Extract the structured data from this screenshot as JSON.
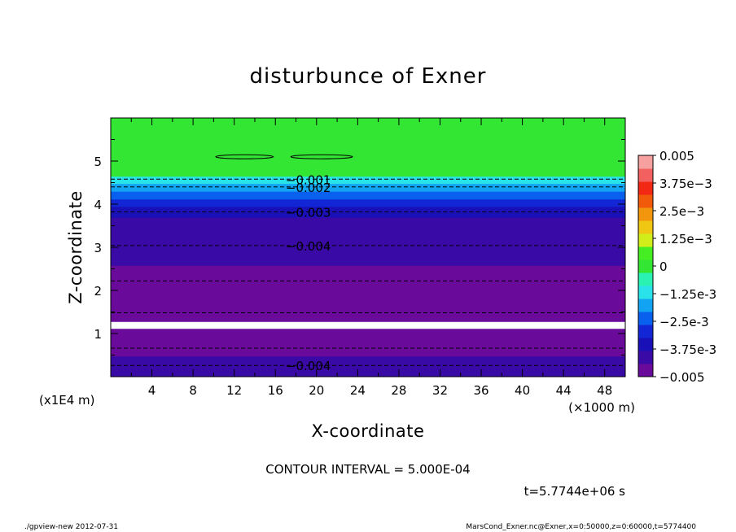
{
  "chart_data": {
    "type": "heatmap",
    "title": "disturbunce of Exner",
    "xlabel": "X-coordinate",
    "ylabel": "Z-coordinate",
    "x_unit": "(×1000 m)",
    "y_unit": "(x1E4 m)",
    "xlim": [
      0,
      50
    ],
    "ylim": [
      0,
      6
    ],
    "x_ticks": [
      4,
      8,
      12,
      16,
      20,
      24,
      28,
      32,
      36,
      40,
      44,
      48
    ],
    "y_ticks": [
      1,
      2,
      3,
      4,
      5
    ],
    "colorbar": {
      "min": -0.005,
      "max": 0.005,
      "tick_labels": [
        "0.005",
        "3.75e-3",
        "2.5e-3",
        "1.25e-3",
        "0",
        "-1.25e-3",
        "-2.5e-3",
        "-3.75e-3",
        "-0.005"
      ],
      "tick_values": [
        0.005,
        0.00375,
        0.0025,
        0.00125,
        0,
        -0.00125,
        -0.0025,
        -0.00375,
        -0.005
      ],
      "colors": [
        "#6a0a9a",
        "#3a0aa6",
        "#1a10b8",
        "#1226d6",
        "#0a60ee",
        "#12a4f2",
        "#2ae2ea",
        "#2af2b2",
        "#33e633",
        "#44ee22",
        "#d2ee1a",
        "#f0c814",
        "#f2960e",
        "#f05a0a",
        "#f22814",
        "#f26060",
        "#f7a0a0"
      ]
    },
    "bands": [
      {
        "z_bottom": 0.0,
        "z_top": 0.26,
        "value": -0.00412
      },
      {
        "z_bottom": 0.26,
        "z_top": 0.48,
        "value": -0.00437
      },
      {
        "z_bottom": 0.48,
        "z_top": 0.62,
        "value": -0.00462
      },
      {
        "z_bottom": 0.62,
        "z_top": 0.8,
        "value": -0.00487
      },
      {
        "z_bottom": 0.8,
        "z_top": 1.0,
        "value": -0.00512
      },
      {
        "z_bottom": 1.0,
        "z_top": 1.12,
        "value": -0.00537
      },
      {
        "z_bottom": 1.12,
        "z_top": 1.28,
        "value": null
      },
      {
        "z_bottom": 1.28,
        "z_top": 1.68,
        "value": -0.00512
      },
      {
        "z_bottom": 1.68,
        "z_top": 2.12,
        "value": -0.00487
      },
      {
        "z_bottom": 2.12,
        "z_top": 2.58,
        "value": -0.00462
      },
      {
        "z_bottom": 2.58,
        "z_top": 3.05,
        "value": -0.00437
      },
      {
        "z_bottom": 3.05,
        "z_top": 3.4,
        "value": -0.00412
      },
      {
        "z_bottom": 3.4,
        "z_top": 3.7,
        "value": -0.00387
      },
      {
        "z_bottom": 3.7,
        "z_top": 3.95,
        "value": -0.00362
      },
      {
        "z_bottom": 3.95,
        "z_top": 4.12,
        "value": -0.00312
      },
      {
        "z_bottom": 4.12,
        "z_top": 4.3,
        "value": -0.00262
      },
      {
        "z_bottom": 4.3,
        "z_top": 4.48,
        "value": -0.00187
      },
      {
        "z_bottom": 4.48,
        "z_top": 4.65,
        "value": -0.00112
      },
      {
        "z_bottom": 4.65,
        "z_top": 6.0,
        "value": 0.0
      }
    ],
    "contours": [
      {
        "z": 4.58,
        "label": "-0.001"
      },
      {
        "z": 4.4,
        "label": "-0.002"
      },
      {
        "z": 3.82,
        "label": "-0.003"
      },
      {
        "z": 3.04,
        "label": "-0.004"
      },
      {
        "z": 2.22,
        "label": ""
      },
      {
        "z": 1.48,
        "label": ""
      },
      {
        "z": 0.66,
        "label": ""
      },
      {
        "z": 0.26,
        "label": "-0.004"
      }
    ],
    "closed_contours": [
      {
        "x_center": 13.0,
        "z_center": 5.1,
        "x_halfwidth": 2.8
      },
      {
        "x_center": 20.5,
        "z_center": 5.1,
        "x_halfwidth": 3.0
      }
    ],
    "annotations": {
      "contour_interval": "CONTOUR INTERVAL = 5.000E-04",
      "time": "t=5.7744e+06 s"
    }
  },
  "footer": {
    "left": "./gpview-new  2012-07-31",
    "right": "MarsCond_Exner.nc@Exner,x=0:50000,z=0:60000,t=5774400"
  }
}
